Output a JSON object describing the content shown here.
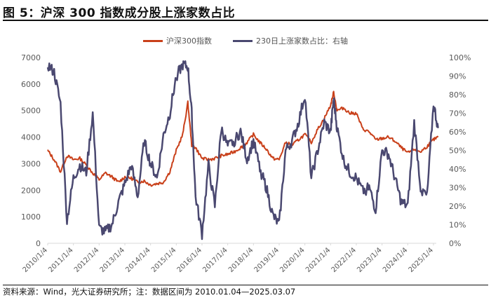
{
  "title": "图 5：沪深 300 指数成分股上涨家数占比",
  "legend": [
    {
      "label": "沪深300指数",
      "color": "#C9401A"
    },
    {
      "label": "230日上涨家数占比：右轴",
      "color": "#4A4870"
    }
  ],
  "source": "资料来源：Wind，光大证券研究所；注：数据区间为 2010.01.04—2025.03.07",
  "chart_data": {
    "type": "line",
    "title": "沪深 300 指数成分股上涨家数占比",
    "xlabel": "",
    "ylabel_left": "",
    "ylabel_right": "",
    "x_ticks": [
      "2010/1/4",
      "2011/1/4",
      "2012/1/4",
      "2013/1/4",
      "2014/1/4",
      "2015/1/4",
      "2016/1/4",
      "2017/1/4",
      "2018/1/4",
      "2019/1/4",
      "2020/1/4",
      "2021/1/4",
      "2022/1/4",
      "2023/1/4",
      "2024/1/4",
      "2025/1/4"
    ],
    "y_left_ticks": [
      "0",
      "1000",
      "2000",
      "3000",
      "4000",
      "5000",
      "6000",
      "7000"
    ],
    "y_right_ticks": [
      "0%",
      "10%",
      "20%",
      "30%",
      "40%",
      "50%",
      "60%",
      "70%",
      "80%",
      "90%",
      "100%"
    ],
    "ylim_left": [
      0,
      7000
    ],
    "ylim_right": [
      0,
      1.0
    ],
    "grid": false,
    "legend_position": "top",
    "x": [
      2010.0,
      2010.25,
      2010.5,
      2010.75,
      2011.0,
      2011.25,
      2011.5,
      2011.75,
      2012.0,
      2012.25,
      2012.5,
      2012.75,
      2013.0,
      2013.25,
      2013.5,
      2013.75,
      2014.0,
      2014.25,
      2014.5,
      2014.75,
      2015.0,
      2015.25,
      2015.45,
      2015.6,
      2015.75,
      2016.0,
      2016.25,
      2016.5,
      2016.75,
      2017.0,
      2017.25,
      2017.5,
      2017.75,
      2018.0,
      2018.25,
      2018.5,
      2018.75,
      2019.0,
      2019.25,
      2019.5,
      2019.75,
      2020.0,
      2020.25,
      2020.5,
      2020.75,
      2021.0,
      2021.12,
      2021.25,
      2021.5,
      2021.75,
      2022.0,
      2022.25,
      2022.5,
      2022.75,
      2023.0,
      2023.25,
      2023.5,
      2023.75,
      2024.0,
      2024.25,
      2024.5,
      2024.75,
      2025.0,
      2025.18
    ],
    "series": [
      {
        "name": "沪深300指数",
        "axis": "left",
        "color": "#C9401A",
        "values": [
          3500,
          3150,
          2700,
          3300,
          3150,
          3200,
          2950,
          2650,
          2400,
          2650,
          2500,
          2300,
          2500,
          2450,
          2300,
          2350,
          2200,
          2250,
          2300,
          2700,
          3500,
          4100,
          5300,
          3700,
          3600,
          3200,
          3150,
          3200,
          3300,
          3350,
          3450,
          3600,
          3800,
          4100,
          3800,
          3550,
          3200,
          3150,
          3800,
          3700,
          3900,
          4100,
          3800,
          4300,
          4700,
          5200,
          5700,
          5000,
          5100,
          4900,
          4900,
          4300,
          4200,
          3900,
          3950,
          4000,
          3850,
          3600,
          3400,
          3550,
          3450,
          3650,
          3900,
          4000
        ]
      },
      {
        "name": "230日上涨家数占比：右轴",
        "axis": "right",
        "color": "#4A4870",
        "values": [
          0.96,
          0.92,
          0.75,
          0.12,
          0.35,
          0.42,
          0.38,
          0.7,
          0.08,
          0.06,
          0.1,
          0.22,
          0.32,
          0.42,
          0.25,
          0.55,
          0.43,
          0.35,
          0.58,
          0.7,
          0.9,
          0.96,
          0.95,
          0.7,
          0.25,
          0.05,
          0.42,
          0.2,
          0.62,
          0.52,
          0.55,
          0.6,
          0.45,
          0.55,
          0.4,
          0.3,
          0.15,
          0.1,
          0.5,
          0.55,
          0.65,
          0.8,
          0.35,
          0.5,
          0.65,
          0.6,
          0.78,
          0.62,
          0.45,
          0.38,
          0.35,
          0.28,
          0.3,
          0.18,
          0.5,
          0.48,
          0.35,
          0.22,
          0.2,
          0.65,
          0.3,
          0.25,
          0.75,
          0.62
        ]
      }
    ]
  }
}
